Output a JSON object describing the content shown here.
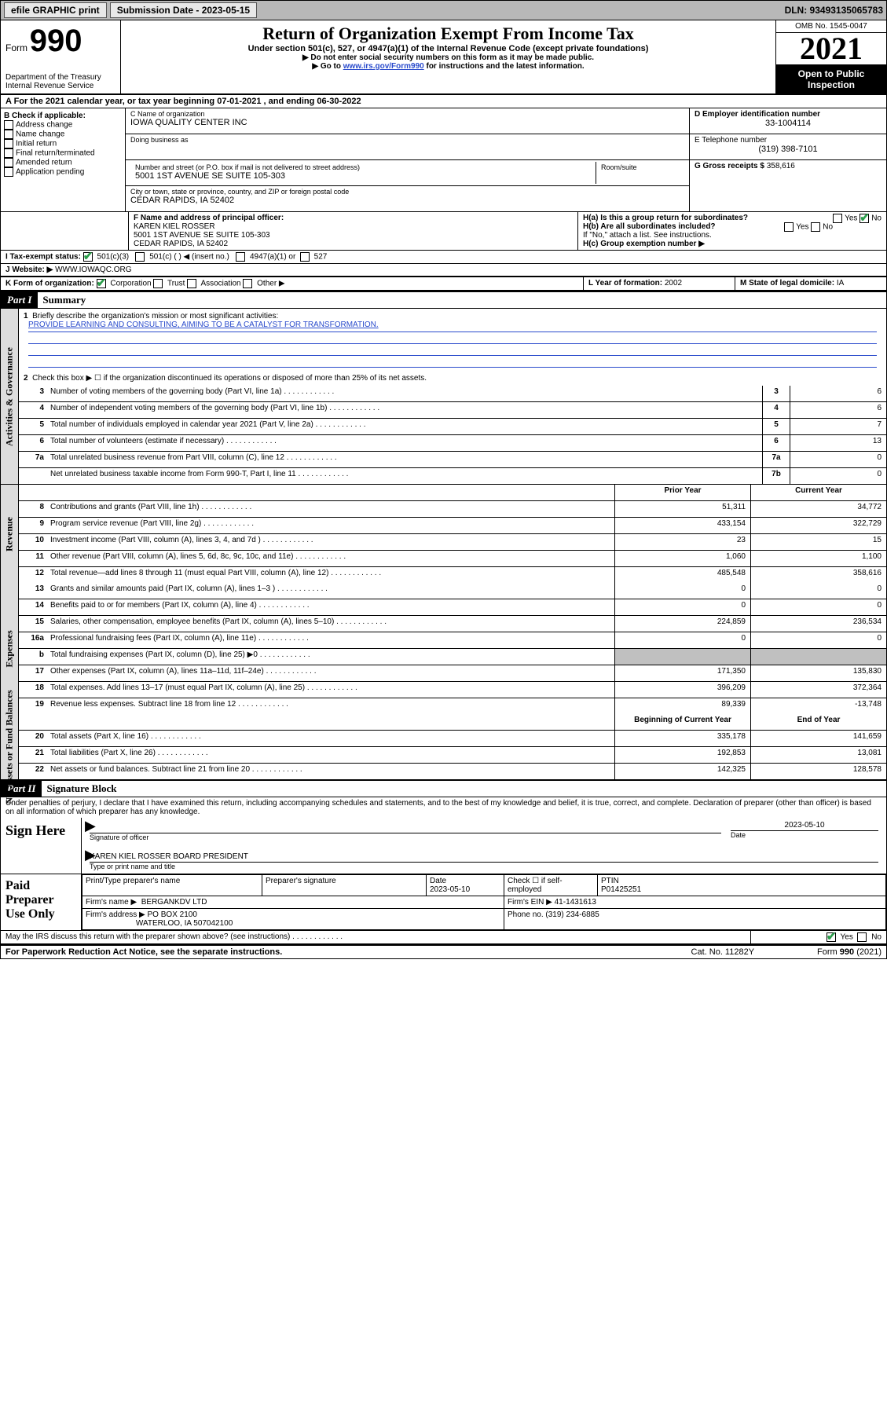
{
  "top": {
    "efile": "efile GRAPHIC print",
    "submission_label": "Submission Date - 2023-05-15",
    "dln": "DLN: 93493135065783"
  },
  "header": {
    "form_label": "Form",
    "form_number": "990",
    "dept": "Department of the Treasury",
    "irs": "Internal Revenue Service",
    "title": "Return of Organization Exempt From Income Tax",
    "subtitle": "Under section 501(c), 527, or 4947(a)(1) of the Internal Revenue Code (except private foundations)",
    "arrow1": "▶ Do not enter social security numbers on this form as it may be made public.",
    "arrow2_pre": "▶ Go to ",
    "arrow2_link": "www.irs.gov/Form990",
    "arrow2_post": " for instructions and the latest information.",
    "omb": "OMB No. 1545-0047",
    "year": "2021",
    "open": "Open to Public Inspection"
  },
  "period": {
    "line_pre": "A For the 2021 calendar year, or tax year beginning ",
    "begin": "07-01-2021",
    "mid": " , and ending ",
    "end": "06-30-2022"
  },
  "b": {
    "label": "B Check if applicable:",
    "opts": [
      "Address change",
      "Name change",
      "Initial return",
      "Final return/terminated",
      "Amended return",
      "Application pending"
    ]
  },
  "c": {
    "name_label": "C Name of organization",
    "name": "IOWA QUALITY CENTER INC",
    "dba_label": "Doing business as",
    "street_label": "Number and street (or P.O. box if mail is not delivered to street address)",
    "room_label": "Room/suite",
    "street": "5001 1ST AVENUE SE SUITE 105-303",
    "city_label": "City or town, state or province, country, and ZIP or foreign postal code",
    "city": "CEDAR RAPIDS, IA  52402"
  },
  "d": {
    "label": "D Employer identification number",
    "value": "33-1004114"
  },
  "e": {
    "label": "E Telephone number",
    "value": "(319) 398-7101"
  },
  "g": {
    "label": "G Gross receipts $",
    "value": "358,616"
  },
  "f": {
    "label": "F Name and address of principal officer:",
    "name": "KAREN KIEL ROSSER",
    "street": "5001 1ST AVENUE SE SUITE 105-303",
    "city": "CEDAR RAPIDS, IA  52402"
  },
  "h": {
    "a_label": "H(a)  Is this a group return for subordinates?",
    "b_label": "H(b)  Are all subordinates included?",
    "b_note": "If \"No,\" attach a list. See instructions.",
    "c_label": "H(c)  Group exemption number ▶",
    "yes": "Yes",
    "no": "No"
  },
  "i": {
    "label": "I   Tax-exempt status:",
    "opt1": "501(c)(3)",
    "opt2": "501(c) (  ) ◀ (insert no.)",
    "opt3": "4947(a)(1) or",
    "opt4": "527"
  },
  "j": {
    "label": "J   Website: ▶",
    "value": "WWW.IOWAQC.ORG"
  },
  "k": {
    "label": "K Form of organization:",
    "opts": [
      "Corporation",
      "Trust",
      "Association",
      "Other ▶"
    ]
  },
  "l": {
    "label": "L Year of formation:",
    "value": "2002"
  },
  "m": {
    "label": "M State of legal domicile:",
    "value": "IA"
  },
  "part1": {
    "header": "Part I",
    "title": "Summary",
    "q1_label": "Briefly describe the organization's mission or most significant activities:",
    "q1_value": "PROVIDE LEARNING AND CONSULTING, AIMING TO BE A CATALYST FOR TRANSFORMATION.",
    "q2": "Check this box ▶ ☐  if the organization discontinued its operations or disposed of more than 25% of its net assets.",
    "rows_small": [
      {
        "n": "3",
        "t": "Number of voting members of the governing body (Part VI, line 1a)",
        "box": "3",
        "v": "6"
      },
      {
        "n": "4",
        "t": "Number of independent voting members of the governing body (Part VI, line 1b)",
        "box": "4",
        "v": "6"
      },
      {
        "n": "5",
        "t": "Total number of individuals employed in calendar year 2021 (Part V, line 2a)",
        "box": "5",
        "v": "7"
      },
      {
        "n": "6",
        "t": "Total number of volunteers (estimate if necessary)",
        "box": "6",
        "v": "13"
      },
      {
        "n": "7a",
        "t": "Total unrelated business revenue from Part VIII, column (C), line 12",
        "box": "7a",
        "v": "0"
      },
      {
        "n": "",
        "t": "Net unrelated business taxable income from Form 990-T, Part I, line 11",
        "box": "7b",
        "v": "0"
      }
    ],
    "col_prior": "Prior Year",
    "col_current": "Current Year",
    "revenue": [
      {
        "n": "8",
        "t": "Contributions and grants (Part VIII, line 1h)",
        "p": "51,311",
        "c": "34,772"
      },
      {
        "n": "9",
        "t": "Program service revenue (Part VIII, line 2g)",
        "p": "433,154",
        "c": "322,729"
      },
      {
        "n": "10",
        "t": "Investment income (Part VIII, column (A), lines 3, 4, and 7d )",
        "p": "23",
        "c": "15"
      },
      {
        "n": "11",
        "t": "Other revenue (Part VIII, column (A), lines 5, 6d, 8c, 9c, 10c, and 11e)",
        "p": "1,060",
        "c": "1,100"
      },
      {
        "n": "12",
        "t": "Total revenue—add lines 8 through 11 (must equal Part VIII, column (A), line 12)",
        "p": "485,548",
        "c": "358,616"
      }
    ],
    "expenses": [
      {
        "n": "13",
        "t": "Grants and similar amounts paid (Part IX, column (A), lines 1–3 )",
        "p": "0",
        "c": "0"
      },
      {
        "n": "14",
        "t": "Benefits paid to or for members (Part IX, column (A), line 4)",
        "p": "0",
        "c": "0"
      },
      {
        "n": "15",
        "t": "Salaries, other compensation, employee benefits (Part IX, column (A), lines 5–10)",
        "p": "224,859",
        "c": "236,534"
      },
      {
        "n": "16a",
        "t": "Professional fundraising fees (Part IX, column (A), line 11e)",
        "p": "0",
        "c": "0"
      },
      {
        "n": "b",
        "t": "Total fundraising expenses (Part IX, column (D), line 25) ▶0",
        "p": "",
        "c": "",
        "grey": true
      },
      {
        "n": "17",
        "t": "Other expenses (Part IX, column (A), lines 11a–11d, 11f–24e)",
        "p": "171,350",
        "c": "135,830"
      },
      {
        "n": "18",
        "t": "Total expenses. Add lines 13–17 (must equal Part IX, column (A), line 25)",
        "p": "396,209",
        "c": "372,364"
      },
      {
        "n": "19",
        "t": "Revenue less expenses. Subtract line 18 from line 12",
        "p": "89,339",
        "c": "-13,748"
      }
    ],
    "col_begin": "Beginning of Current Year",
    "col_end": "End of Year",
    "net": [
      {
        "n": "20",
        "t": "Total assets (Part X, line 16)",
        "p": "335,178",
        "c": "141,659"
      },
      {
        "n": "21",
        "t": "Total liabilities (Part X, line 26)",
        "p": "192,853",
        "c": "13,081"
      },
      {
        "n": "22",
        "t": "Net assets or fund balances. Subtract line 21 from line 20",
        "p": "142,325",
        "c": "128,578"
      }
    ],
    "tab_gov": "Activities & Governance",
    "tab_rev": "Revenue",
    "tab_exp": "Expenses",
    "tab_net": "Net Assets or Fund Balances"
  },
  "part2": {
    "header": "Part II",
    "title": "Signature Block",
    "decl": "Under penalties of perjury, I declare that I have examined this return, including accompanying schedules and statements, and to the best of my knowledge and belief, it is true, correct, and complete. Declaration of preparer (other than officer) is based on all information of which preparer has any knowledge.",
    "sign_here": "Sign Here",
    "sig_officer": "Signature of officer",
    "date_label": "Date",
    "sig_date": "2023-05-10",
    "officer_name": "KAREN KIEL ROSSER  BOARD PRESIDENT",
    "type_name": "Type or print name and title",
    "paid": "Paid Preparer Use Only",
    "prep_name_label": "Print/Type preparer's name",
    "prep_sig_label": "Preparer's signature",
    "prep_date_label": "Date",
    "prep_date": "2023-05-10",
    "check_if": "Check ☐ if self-employed",
    "ptin_label": "PTIN",
    "ptin": "P01425251",
    "firm_name_label": "Firm's name    ▶",
    "firm_name": "BERGANKDV LTD",
    "firm_ein_label": "Firm's EIN ▶",
    "firm_ein": "41-1431613",
    "firm_addr_label": "Firm's address ▶",
    "firm_addr1": "PO BOX 2100",
    "firm_addr2": "WATERLOO, IA  507042100",
    "phone_label": "Phone no.",
    "phone": "(319) 234-6885",
    "discuss": "May the IRS discuss this return with the preparer shown above? (see instructions)"
  },
  "footer": {
    "pra": "For Paperwork Reduction Act Notice, see the separate instructions.",
    "cat": "Cat. No. 11282Y",
    "form": "Form 990 (2021)"
  }
}
